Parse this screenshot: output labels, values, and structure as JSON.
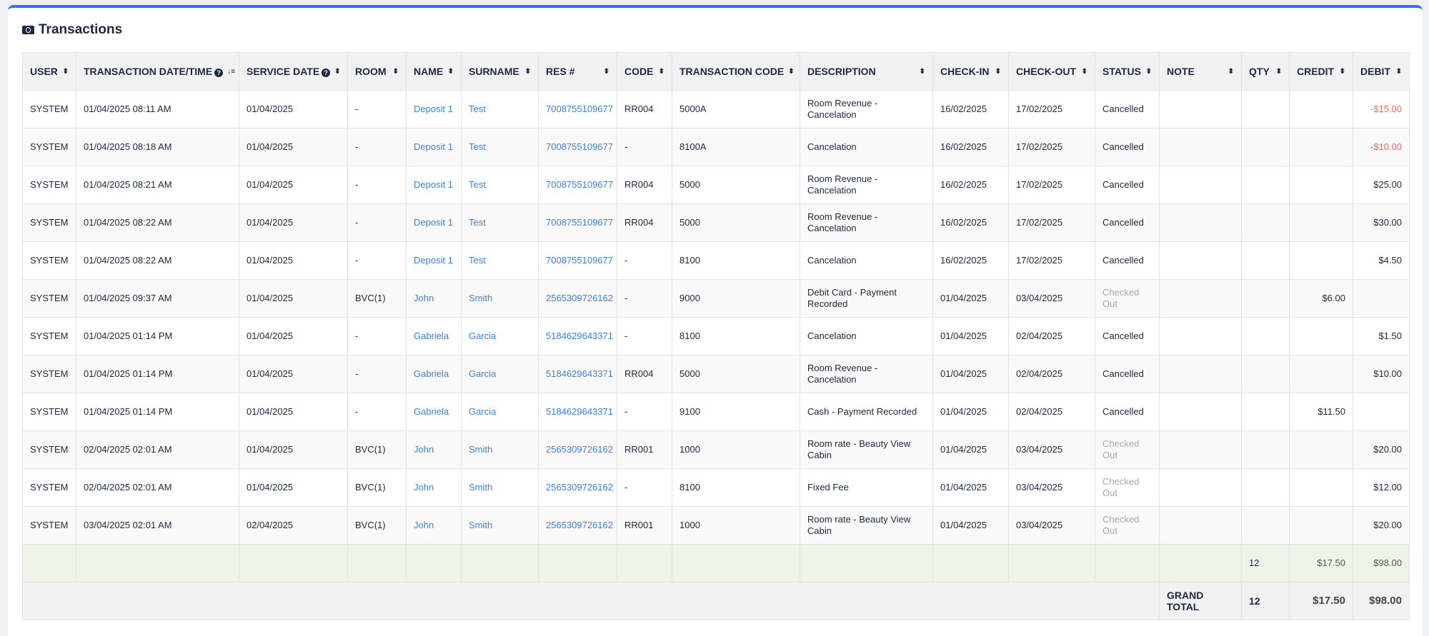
{
  "title": "Transactions",
  "colors": {
    "accent": "#3b6df0",
    "link": "#3b7ff0",
    "negative": "#f06a6a",
    "subtotal_bg": "#edf3e6"
  },
  "columns": [
    {
      "label": "USER",
      "icon": "sort-icon"
    },
    {
      "label": "TRANSACTION DATE/TIME",
      "help": true,
      "icon": "sort-descending-icon"
    },
    {
      "label": "SERVICE DATE",
      "help": true,
      "icon": "sort-icon"
    },
    {
      "label": "ROOM",
      "icon": "sort-icon"
    },
    {
      "label": "NAME",
      "icon": "sort-icon"
    },
    {
      "label": "SURNAME",
      "icon": "sort-icon"
    },
    {
      "label": "RES #",
      "icon": "sort-icon"
    },
    {
      "label": "CODE",
      "icon": "sort-icon"
    },
    {
      "label": "TRANSACTION CODE",
      "icon": "sort-icon"
    },
    {
      "label": "DESCRIPTION",
      "icon": "sort-icon"
    },
    {
      "label": "CHECK-IN",
      "icon": "sort-icon"
    },
    {
      "label": "CHECK-OUT",
      "icon": "sort-icon"
    },
    {
      "label": "STATUS",
      "icon": "sort-icon"
    },
    {
      "label": "NOTE",
      "icon": "sort-icon"
    },
    {
      "label": "QTY",
      "icon": "sort-icon"
    },
    {
      "label": "CREDIT",
      "icon": "sort-icon"
    },
    {
      "label": "DEBIT",
      "icon": "sort-icon"
    }
  ],
  "rows": [
    [
      "SYSTEM",
      "01/04/2025 08:11 AM",
      "01/04/2025",
      "-",
      "Deposit 1",
      "Test",
      "7008755109677",
      "RR004",
      "5000A",
      "Room Revenue - Cancelation",
      "16/02/2025",
      "17/02/2025",
      "Cancelled",
      "",
      "",
      "",
      "-$15.00"
    ],
    [
      "SYSTEM",
      "01/04/2025 08:18 AM",
      "01/04/2025",
      "-",
      "Deposit 1",
      "Test",
      "7008755109677",
      "-",
      "8100A",
      "Cancelation",
      "16/02/2025",
      "17/02/2025",
      "Cancelled",
      "",
      "",
      "",
      "-$10.00"
    ],
    [
      "SYSTEM",
      "01/04/2025 08:21 AM",
      "01/04/2025",
      "-",
      "Deposit 1",
      "Test",
      "7008755109677",
      "RR004",
      "5000",
      "Room Revenue - Cancelation",
      "16/02/2025",
      "17/02/2025",
      "Cancelled",
      "",
      "",
      "",
      "$25.00"
    ],
    [
      "SYSTEM",
      "01/04/2025 08:22 AM",
      "01/04/2025",
      "-",
      "Deposit 1",
      "Test",
      "7008755109677",
      "RR004",
      "5000",
      "Room Revenue - Cancelation",
      "16/02/2025",
      "17/02/2025",
      "Cancelled",
      "",
      "",
      "",
      "$30.00"
    ],
    [
      "SYSTEM",
      "01/04/2025 08:22 AM",
      "01/04/2025",
      "-",
      "Deposit 1",
      "Test",
      "7008755109677",
      "-",
      "8100",
      "Cancelation",
      "16/02/2025",
      "17/02/2025",
      "Cancelled",
      "",
      "",
      "",
      "$4.50"
    ],
    [
      "SYSTEM",
      "01/04/2025 09:37 AM",
      "01/04/2025",
      "BVC(1)",
      "John",
      "Smith",
      "2565309726162",
      "-",
      "9000",
      "Debit Card - Payment Recorded",
      "01/04/2025",
      "03/04/2025",
      "Checked Out",
      "",
      "",
      "$6.00",
      ""
    ],
    [
      "SYSTEM",
      "01/04/2025 01:14 PM",
      "01/04/2025",
      "-",
      "Gabriela",
      "Garcia",
      "5184629643371",
      "-",
      "8100",
      "Cancelation",
      "01/04/2025",
      "02/04/2025",
      "Cancelled",
      "",
      "",
      "",
      "$1.50"
    ],
    [
      "SYSTEM",
      "01/04/2025 01:14 PM",
      "01/04/2025",
      "-",
      "Gabriela",
      "Garcia",
      "5184629643371",
      "RR004",
      "5000",
      "Room Revenue - Cancelation",
      "01/04/2025",
      "02/04/2025",
      "Cancelled",
      "",
      "",
      "",
      "$10.00"
    ],
    [
      "SYSTEM",
      "01/04/2025 01:14 PM",
      "01/04/2025",
      "-",
      "Gabriela",
      "Garcia",
      "5184629643371",
      "-",
      "9100",
      "Cash - Payment Recorded",
      "01/04/2025",
      "02/04/2025",
      "Cancelled",
      "",
      "",
      "$11.50",
      ""
    ],
    [
      "SYSTEM",
      "02/04/2025 02:01 AM",
      "01/04/2025",
      "BVC(1)",
      "John",
      "Smith",
      "2565309726162",
      "RR001",
      "1000",
      "Room rate - Beauty View Cabin",
      "01/04/2025",
      "03/04/2025",
      "Checked Out",
      "",
      "",
      "",
      "$20.00"
    ],
    [
      "SYSTEM",
      "02/04/2025 02:01 AM",
      "01/04/2025",
      "BVC(1)",
      "John",
      "Smith",
      "2565309726162",
      "-",
      "8100",
      "Fixed Fee",
      "01/04/2025",
      "03/04/2025",
      "Checked Out",
      "",
      "",
      "",
      "$12.00"
    ],
    [
      "SYSTEM",
      "03/04/2025 02:01 AM",
      "02/04/2025",
      "BVC(1)",
      "John",
      "Smith",
      "2565309726162",
      "RR001",
      "1000",
      "Room rate - Beauty View Cabin",
      "01/04/2025",
      "03/04/2025",
      "Checked Out",
      "",
      "",
      "",
      "$20.00"
    ]
  ],
  "subtotal": {
    "qty": "12",
    "credit": "$17.50",
    "debit": "$98.00"
  },
  "grand_total": {
    "label": "GRAND TOTAL",
    "qty": "12",
    "credit": "$17.50",
    "debit": "$98.00"
  }
}
